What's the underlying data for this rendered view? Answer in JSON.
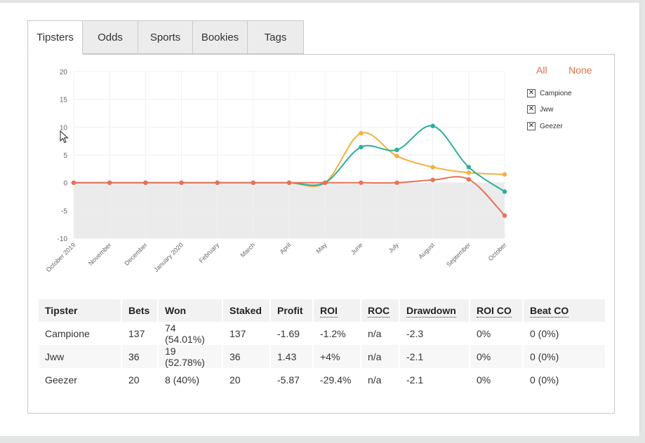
{
  "tabs": [
    {
      "label": "Tipsters",
      "active": true
    },
    {
      "label": "Odds"
    },
    {
      "label": "Sports"
    },
    {
      "label": "Bookies"
    },
    {
      "label": "Tags"
    }
  ],
  "legend": {
    "all_label": "All",
    "none_label": "None",
    "items": [
      {
        "label": "Campione",
        "checked": true
      },
      {
        "label": "Jww",
        "checked": true
      },
      {
        "label": "Geezer",
        "checked": true
      }
    ]
  },
  "chart_data": {
    "type": "line",
    "categories": [
      "October 2019",
      "November",
      "December",
      "January 2020",
      "February",
      "March",
      "April",
      "May",
      "June",
      "July",
      "August",
      "September",
      "October"
    ],
    "series": [
      {
        "name": "Campione",
        "color": "#f5b041",
        "values": [
          0,
          0,
          0,
          0,
          0,
          0,
          0,
          0,
          8.9,
          4.8,
          2.8,
          1.8,
          1.5
        ]
      },
      {
        "name": "Jww",
        "color": "#2bb09a",
        "values": [
          0,
          0,
          0,
          0,
          0,
          0,
          0,
          0,
          6.4,
          5.9,
          10.2,
          2.8,
          -1.6
        ]
      },
      {
        "name": "Geezer",
        "color": "#e8705a",
        "values": [
          0,
          0,
          0,
          0,
          0,
          0,
          0,
          0,
          0,
          0,
          0.5,
          0.6,
          -5.9
        ]
      }
    ],
    "yticks": [
      20,
      15,
      10,
      5,
      0,
      -5,
      -10
    ],
    "ylim": [
      -10,
      20
    ]
  },
  "table": {
    "headers": [
      "Tipster",
      "Bets",
      "Won",
      "Staked",
      "Profit",
      "ROI",
      "ROC",
      "Drawdown",
      "ROI CO",
      "Beat CO"
    ],
    "rows": [
      [
        "Campione",
        "137",
        "74 (54.01%)",
        "137",
        "-1.69",
        "-1.2%",
        "n/a",
        "-2.3",
        "0%",
        "0 (0%)"
      ],
      [
        "Jww",
        "36",
        "19 (52.78%)",
        "36",
        "1.43",
        "+4%",
        "n/a",
        "-2.1",
        "0%",
        "0 (0%)"
      ],
      [
        "Geezer",
        "20",
        "8 (40%)",
        "20",
        "-5.87",
        "-29.4%",
        "n/a",
        "-2.1",
        "0%",
        "0 (0%)"
      ]
    ]
  }
}
